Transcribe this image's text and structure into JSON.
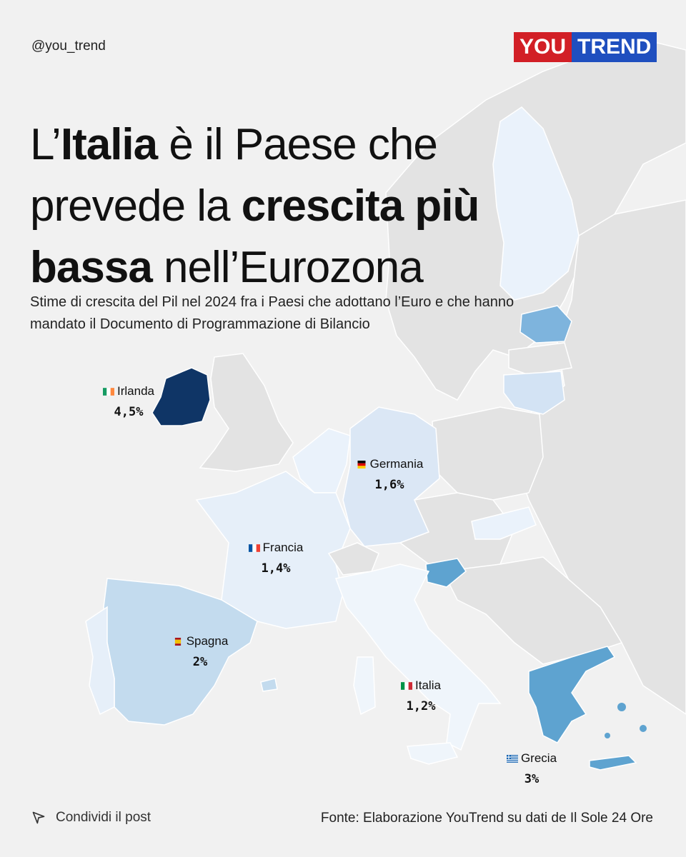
{
  "header": {
    "handle": "@you_trend",
    "logo_you": "YOU",
    "logo_trend": "TREND",
    "title_part1": "L’",
    "title_bold1": "Italia",
    "title_part2": " è il Paese che prevede la ",
    "title_bold2": "crescita più bassa",
    "title_part3": " nell’Eurozona",
    "subtitle": "Stime di crescita del Pil nel 2024 fra i Paesi che adottano l’Euro e che hanno mandato il Documento di Programmazione di Bilancio"
  },
  "countries": [
    {
      "name": "Irlanda",
      "value": "4,5%",
      "flag": "ireland-flag-icon"
    },
    {
      "name": "Germania",
      "value": "1,6%",
      "flag": "germany-flag-icon"
    },
    {
      "name": "Francia",
      "value": "1,4%",
      "flag": "france-flag-icon"
    },
    {
      "name": "Spagna",
      "value": "2%",
      "flag": "spain-flag-icon"
    },
    {
      "name": "Italia",
      "value": "1,2%",
      "flag": "italy-flag-icon"
    },
    {
      "name": "Grecia",
      "value": "3%",
      "flag": "greece-flag-icon"
    }
  ],
  "footer": {
    "share": "Condividi il post",
    "source": "Fonte: Elaborazione YouTrend su dati de Il Sole 24 Ore"
  },
  "colors": {
    "background": "#f1f1f1",
    "non_eurozone": "#e3e3e3",
    "irlanda": "#0f3566",
    "grecia": "#5ea3d0",
    "spagna": "#c3dbee",
    "germania": "#dbe7f5",
    "francia": "#e6eff9",
    "italia": "#eff5fb",
    "logo_red": "#d21f26",
    "logo_blue": "#1f4fbf"
  }
}
